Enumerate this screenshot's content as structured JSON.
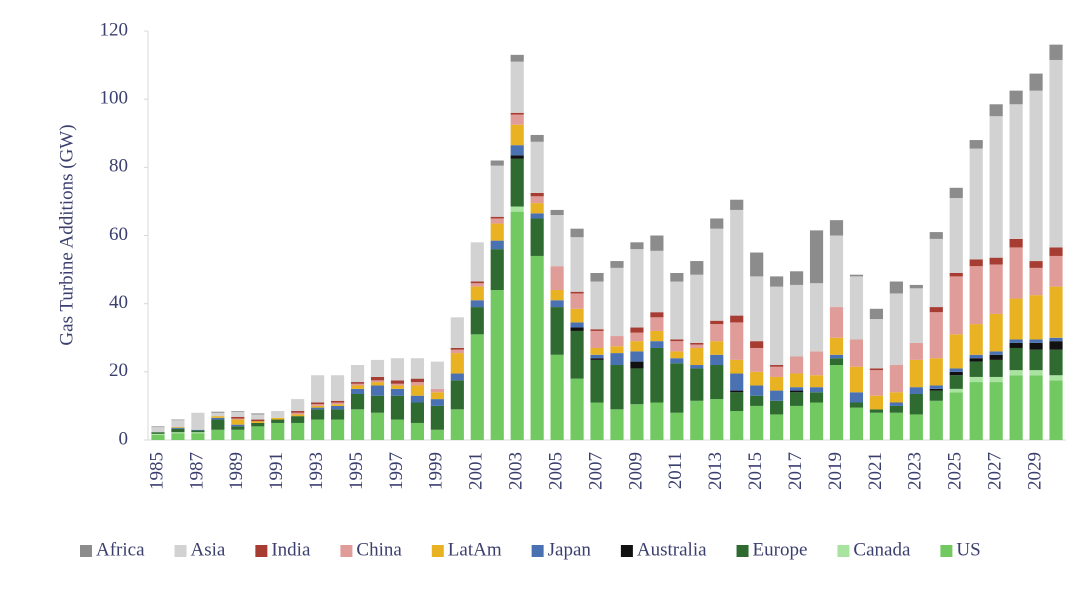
{
  "chart_data": {
    "type": "stacked_bar",
    "y_label": "Gas Turbine Additions (GW)",
    "categories": [
      "1985",
      null,
      "1987",
      null,
      "1989",
      null,
      "1991",
      null,
      "1993",
      null,
      "1995",
      null,
      "1997",
      null,
      "1999",
      null,
      "2001",
      null,
      "2003",
      null,
      "2005",
      null,
      "2007",
      null,
      "2009",
      null,
      "2011",
      null,
      "2013",
      null,
      "2015",
      null,
      "2017",
      null,
      "2019",
      null,
      "2021",
      null,
      "2023",
      null,
      "2025",
      null,
      "2027",
      null,
      "2029",
      null
    ],
    "ylim": [
      0,
      120
    ],
    "yticks": [
      0,
      20,
      40,
      60,
      80,
      100,
      120
    ],
    "legend": "bottom",
    "series": [
      {
        "name": "US",
        "color": "#72c962",
        "values": [
          1.5,
          2,
          2,
          3,
          3,
          4,
          5,
          5,
          6,
          6,
          9,
          8,
          6,
          5,
          3,
          9,
          31,
          44,
          67,
          54,
          25,
          18,
          11,
          9,
          10.5,
          11,
          8,
          11.5,
          12,
          8.5,
          10,
          7.5,
          10,
          11,
          22,
          9.5,
          8,
          8,
          7.5,
          11.5,
          14,
          17,
          17,
          19,
          19,
          17.5
        ]
      },
      {
        "name": "Canada",
        "color": "#a9e3a0",
        "values": [
          0.3,
          0.3,
          0.3,
          0,
          0,
          0,
          0,
          0,
          0,
          0,
          0,
          0,
          0,
          0,
          0,
          0,
          0,
          0,
          1.5,
          0,
          0,
          0,
          0,
          0,
          0,
          0,
          0,
          0,
          0,
          0,
          0,
          0,
          0,
          0,
          0,
          0,
          0,
          0,
          0,
          0,
          1,
          1.5,
          1.5,
          1.5,
          1.5,
          1.5
        ]
      },
      {
        "name": "Europe",
        "color": "#2f6b30",
        "values": [
          0.5,
          1,
          0.5,
          3,
          1,
          1,
          1,
          2,
          3,
          3,
          4.5,
          5,
          7,
          6,
          7,
          8.5,
          8,
          12,
          14,
          11,
          14,
          14,
          12.5,
          13,
          10.5,
          16,
          14.5,
          9.5,
          10,
          5.5,
          3,
          4,
          4,
          3,
          2,
          1.5,
          1,
          2,
          6,
          3,
          4,
          4.5,
          5,
          6.5,
          6,
          7.5
        ]
      },
      {
        "name": "Australia",
        "color": "#111111",
        "values": [
          0,
          0,
          0,
          0,
          0,
          0,
          0,
          0,
          0,
          0,
          0,
          0,
          0,
          0,
          0,
          0,
          0,
          0,
          1,
          0,
          0,
          1,
          0.5,
          0,
          2,
          0,
          0,
          0,
          0,
          0.5,
          0,
          0,
          0.5,
          0,
          0,
          0,
          0,
          0,
          0,
          0.5,
          1,
          1,
          1.5,
          1.5,
          2,
          2.5
        ]
      },
      {
        "name": "Japan",
        "color": "#4a72b2",
        "values": [
          0,
          0.3,
          0.2,
          0.5,
          0.5,
          0,
          0,
          0,
          0.5,
          1,
          1.5,
          3,
          2,
          2,
          2,
          2,
          2,
          2.5,
          3,
          1.5,
          2,
          1.5,
          1,
          3.5,
          3,
          2,
          1.5,
          1,
          3,
          5,
          3,
          3,
          1,
          1.5,
          1,
          3,
          0,
          1,
          2,
          1,
          1,
          1,
          1,
          1,
          1,
          1
        ]
      },
      {
        "name": "LatAm",
        "color": "#e8b222",
        "values": [
          0,
          0.2,
          0,
          0.5,
          1.5,
          0.5,
          0.5,
          0.5,
          0.5,
          0.5,
          1,
          1,
          1,
          3,
          2,
          6,
          4,
          5,
          6,
          3,
          3,
          4,
          2,
          2,
          3,
          3,
          2,
          5,
          4,
          4,
          4,
          4,
          4,
          3.5,
          5,
          7.5,
          4,
          3,
          8,
          8,
          10,
          9,
          11,
          12,
          13,
          15
        ]
      },
      {
        "name": "China",
        "color": "#e09c98",
        "values": [
          0,
          0,
          0,
          0,
          0.3,
          0,
          0,
          0.5,
          0.5,
          0.5,
          0.5,
          0.5,
          0.5,
          1,
          1,
          1,
          1,
          1.5,
          3,
          2,
          7,
          4.5,
          5,
          3,
          2.5,
          4,
          3,
          1,
          5,
          11,
          7,
          3,
          5,
          7,
          9,
          8,
          7.5,
          8,
          5,
          13.5,
          17,
          17,
          14.5,
          15,
          8,
          9
        ]
      },
      {
        "name": "India",
        "color": "#a63c32",
        "values": [
          0,
          0,
          0,
          0,
          0.5,
          0.5,
          0,
          0.5,
          0.5,
          0.5,
          0.5,
          1,
          1,
          1,
          0,
          0.5,
          0.5,
          0.5,
          0.5,
          1,
          0,
          0.5,
          0.5,
          0,
          1.5,
          1.5,
          0.5,
          0.5,
          1,
          2,
          2,
          0.5,
          0,
          0,
          0,
          0,
          0.5,
          0,
          0,
          1.5,
          1,
          2,
          2,
          2.5,
          2,
          2.5
        ]
      },
      {
        "name": "Asia",
        "color": "#d2d2d2",
        "values": [
          1.5,
          2,
          5,
          1,
          1.5,
          1.5,
          2,
          3.5,
          8,
          7.5,
          5,
          5,
          6.5,
          6,
          8,
          9,
          11.5,
          15,
          15,
          15,
          15,
          16,
          14,
          20,
          23,
          18,
          17,
          20,
          27,
          31,
          19,
          23,
          21,
          20,
          21,
          18.5,
          14.5,
          21,
          16,
          20,
          22,
          32.5,
          41.5,
          39.5,
          50,
          55
        ]
      },
      {
        "name": "Africa",
        "color": "#8c8c8c",
        "values": [
          0.2,
          0.2,
          0,
          0.3,
          0.2,
          0.3,
          0,
          0,
          0,
          0,
          0,
          0,
          0,
          0,
          0,
          0,
          0,
          1.5,
          2,
          2,
          1.5,
          2.5,
          2.5,
          2,
          2,
          4.5,
          2.5,
          4,
          3,
          3,
          7,
          3,
          4,
          15.5,
          4.5,
          0.5,
          3,
          3.5,
          1,
          2,
          3,
          2.5,
          3.5,
          4,
          5,
          4.5
        ]
      }
    ]
  }
}
